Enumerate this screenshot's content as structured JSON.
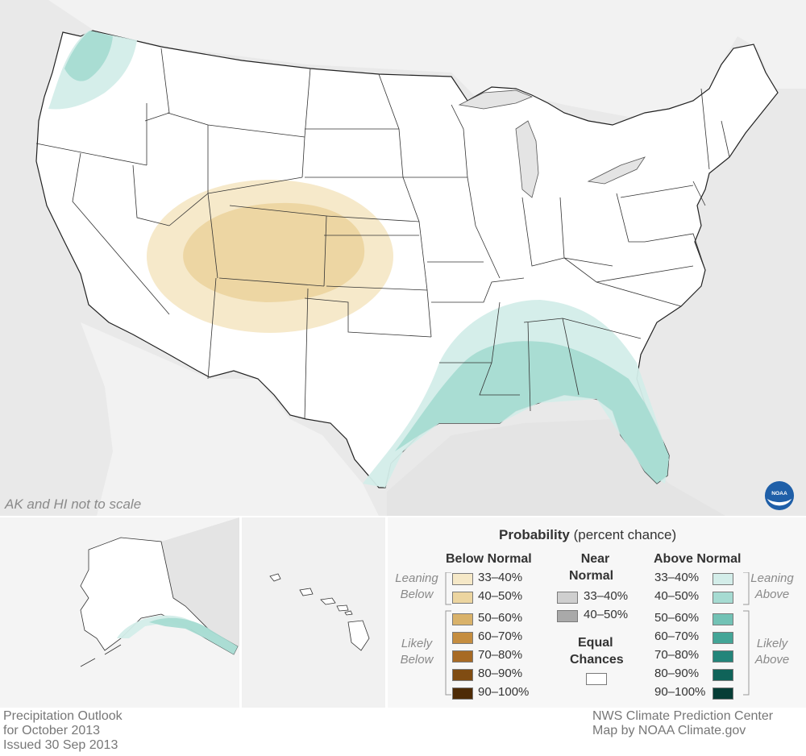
{
  "map": {
    "scale_note": "AK and HI not to scale",
    "logo_text": "NOAA"
  },
  "legend": {
    "title_bold": "Probability",
    "title_rest": " (percent chance)",
    "below_header": "Below Normal",
    "near_header_line1": "Near",
    "near_header_line2": "Normal",
    "above_header": "Above Normal",
    "leaning_below_1": "Leaning",
    "leaning_below_2": "Below",
    "likely_below_1": "Likely",
    "likely_below_2": "Below",
    "leaning_above_1": "Leaning",
    "leaning_above_2": "Above",
    "likely_above_1": "Likely",
    "likely_above_2": "Above",
    "equal_line1": "Equal",
    "equal_line2": "Chances",
    "below": [
      {
        "label": "33–40%",
        "color": "#f5e8c7"
      },
      {
        "label": "40–50%",
        "color": "#ecd5a0"
      },
      {
        "label": "50–60%",
        "color": "#d9b26a"
      },
      {
        "label": "60–70%",
        "color": "#c58d3f"
      },
      {
        "label": "70–80%",
        "color": "#a76a24"
      },
      {
        "label": "80–90%",
        "color": "#804c12"
      },
      {
        "label": "90–100%",
        "color": "#4e2b06"
      }
    ],
    "near": [
      {
        "label": "33–40%",
        "color": "#cfcfcf"
      },
      {
        "label": "40–50%",
        "color": "#a9a9a9"
      }
    ],
    "above": [
      {
        "label": "33–40%",
        "color": "#d3ede9"
      },
      {
        "label": "40–50%",
        "color": "#a6dbd2"
      },
      {
        "label": "50–60%",
        "color": "#72c2b5"
      },
      {
        "label": "60–70%",
        "color": "#43a597"
      },
      {
        "label": "70–80%",
        "color": "#23857a"
      },
      {
        "label": "80–90%",
        "color": "#0f6359"
      },
      {
        "label": "90–100%",
        "color": "#063d36"
      }
    ]
  },
  "footer": {
    "line1": "Precipitation Outlook",
    "line2": "for October 2013",
    "line3": "Issued 30 Sep 2013",
    "credit1": "NWS Climate Prediction Center",
    "credit2": "Map by NOAA Climate.gov"
  }
}
